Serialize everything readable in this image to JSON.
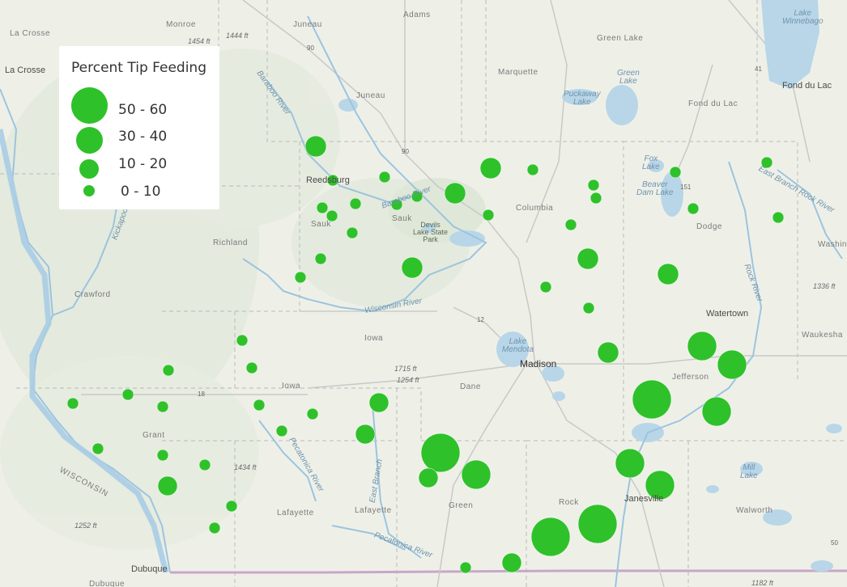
{
  "map": {
    "legend": {
      "title": "Percent Tip Feeding",
      "classes": [
        {
          "label": "50 - 60",
          "size": "large"
        },
        {
          "label": "30 - 40",
          "size": "medium"
        },
        {
          "label": "10 - 20",
          "size": "small"
        },
        {
          "label": "0 - 10",
          "size": "xsmall"
        }
      ]
    },
    "colors": {
      "symbol": "#2fc12a",
      "background": "#eef0e8",
      "water": "#b8d6e8",
      "river": "#9cc4de"
    },
    "labels": {
      "monroe": "Monroe",
      "juneau_top": "Juneau",
      "adams": "Adams",
      "lacrosse_county": "La Crosse",
      "lacrosse_city": "La Crosse",
      "green_lake_county": "Green Lake",
      "marquette": "Marquette",
      "juneau_county": "Juneau",
      "puckaway": "Puckaway\nLake",
      "green_lake_water": "Green\nLake",
      "fond_du_lac_county": "Fond du Lac",
      "fond_du_lac_city": "Fond du Lac",
      "lake_winnebago": "Lake\nWinnebago",
      "fox_lake": "Fox\nLake",
      "beaver_dam": "Beaver\nDam Lake",
      "reedsburg": "Reedsburg",
      "sauk_city": "Sauk",
      "sauk_county": "Sauk",
      "baraboo_river": "Baraboo River",
      "baraboo_river2": "Baraboo River",
      "devils_lake": "Devils\nLake State\nPark",
      "columbia": "Columbia",
      "dodge": "Dodge",
      "washington": "Washin",
      "east_branch_rock": "East Branch Rock River",
      "rock_river_n": "Rock River",
      "richland": "Richland",
      "crawford": "Crawford",
      "kickapoo": "Kickapoo River",
      "wisconsin_river": "Wisconsin River",
      "wisconsin_state": "WISCONSIN",
      "iowa_county": "Iowa",
      "iowa_city": "Iowa",
      "lake_mendota": "Lake\nMendota",
      "madison": "Madison",
      "dane": "Dane",
      "watertown": "Watertown",
      "waukesha": "Waukesha",
      "jefferson": "Jefferson",
      "grant": "Grant",
      "pecatonica_river": "Pecatonica River",
      "pecatonica_river2": "Pecatonica River",
      "east_branch_pec": "East Branch",
      "lafayette": "Lafayette",
      "green": "Green",
      "rock_county": "Rock",
      "janesville": "Janesville",
      "walworth": "Walworth",
      "mill_lake": "Mill\nLake",
      "dubuque": "Dubuque",
      "dubuque2": "Dubuque",
      "elev_1454": "1454 ft",
      "elev_1444": "1444 ft",
      "elev_1336": "1336 ft",
      "elev_1715": "1715 ft",
      "elev_1254": "1254 ft",
      "elev_1434": "1434 ft",
      "elev_1252": "1252 ft",
      "elev_1182": "1182 ft",
      "road_90a": "90",
      "road_90b": "90",
      "road_41": "41",
      "road_151": "151",
      "road_18": "18",
      "road_12": "12",
      "road_50": "50"
    },
    "observations": [
      {
        "id": 1,
        "cls": 2,
        "r": 12
      },
      {
        "id": 2,
        "cls": 3,
        "r": 7
      },
      {
        "id": 3,
        "cls": 3,
        "r": 7
      },
      {
        "id": 4,
        "cls": 3,
        "r": 7
      },
      {
        "id": 5,
        "cls": 3,
        "r": 7
      },
      {
        "id": 6,
        "cls": 3,
        "r": 7
      },
      {
        "id": 7,
        "cls": 3,
        "r": 7
      },
      {
        "id": 8,
        "cls": 3,
        "r": 7
      },
      {
        "id": 9,
        "cls": 2,
        "r": 12
      },
      {
        "id": 10,
        "cls": 2,
        "r": 12
      },
      {
        "id": 11,
        "cls": 3,
        "r": 7
      },
      {
        "id": 12,
        "cls": 3,
        "r": 7
      },
      {
        "id": 13,
        "cls": 2,
        "r": 12
      },
      {
        "id": 14,
        "cls": 3,
        "r": 7
      },
      {
        "id": 15,
        "cls": 3,
        "r": 7
      },
      {
        "id": 16,
        "cls": 3,
        "r": 7
      }
    ]
  }
}
